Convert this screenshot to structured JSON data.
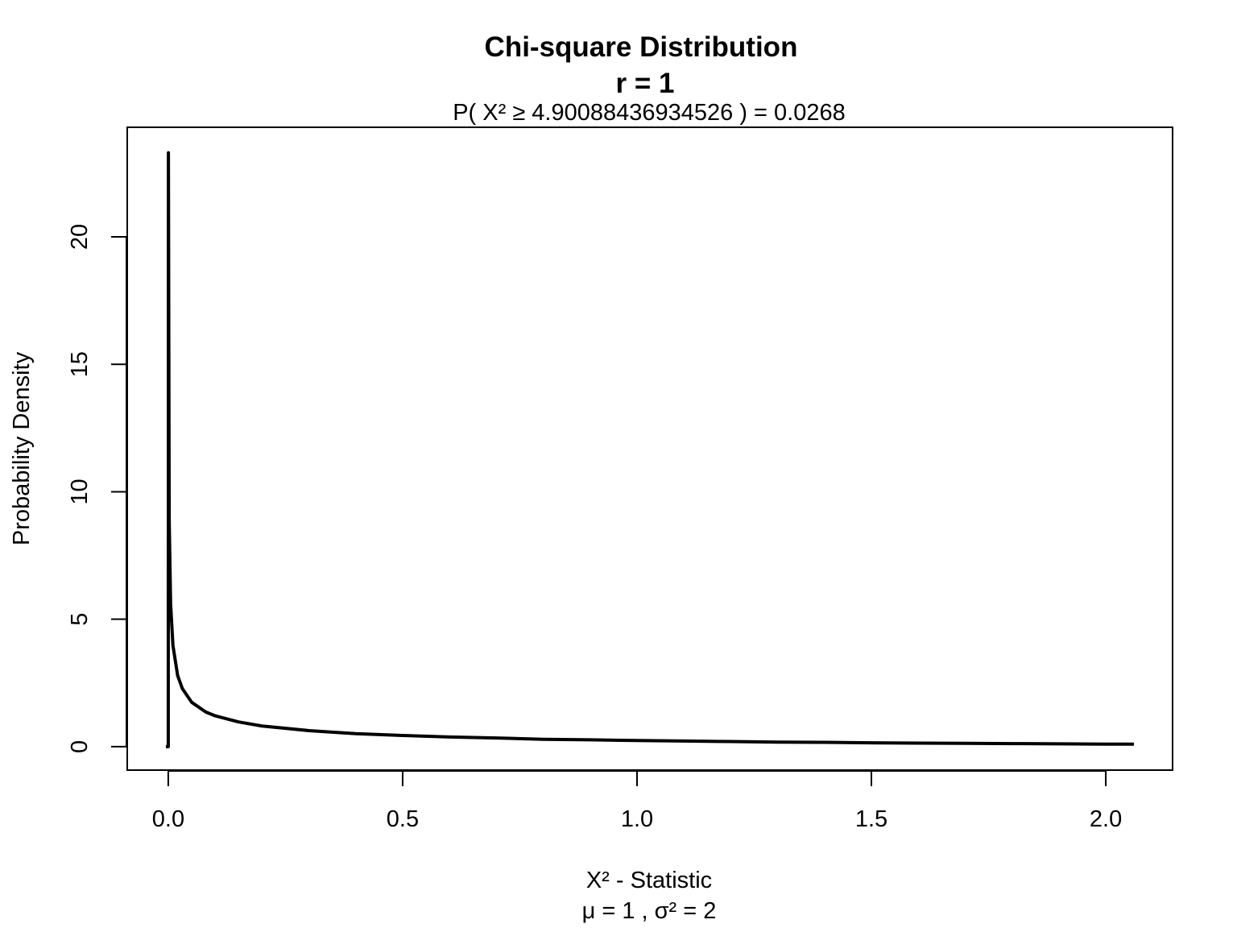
{
  "chart_data": {
    "type": "line",
    "title": "Chi-square Distribution",
    "subtitle": "r  =  1",
    "probability_label": "P(  X²  ≥  4.90088436934526  ) = 0.0268",
    "xlabel": "X² - Statistic",
    "xlabel_sub": "μ =  1 , σ² =  2",
    "ylabel": "Probability Density",
    "xlim": [
      -0.0875,
      2.1425
    ],
    "ylim": [
      -0.92,
      24.3
    ],
    "x_ticks": [
      0,
      0.5,
      1,
      1.5,
      2
    ],
    "x_tick_labels": [
      "0.0",
      "0.5",
      "1.0",
      "1.5",
      "2.0"
    ],
    "y_ticks": [
      0,
      5,
      10,
      15,
      20
    ],
    "y_tick_labels": [
      "0",
      "5",
      "10",
      "15",
      "20"
    ],
    "grid": false,
    "line_color": "#000000",
    "series": [
      {
        "x": [
          -0.005,
          -0.004,
          0.0,
          0.0003,
          0.002,
          0.005,
          0.01,
          0.02,
          0.03,
          0.05,
          0.08,
          0.1,
          0.15,
          0.2,
          0.3,
          0.4,
          0.5,
          0.6,
          0.7,
          0.8,
          0.9,
          1.0,
          1.1,
          1.2,
          1.3,
          1.4,
          1.5,
          1.6,
          1.7,
          1.8,
          1.9,
          2.0,
          2.06
        ],
        "y": [
          0,
          0,
          0,
          23.3,
          8.9,
          5.6,
          3.97,
          2.79,
          2.28,
          1.74,
          1.36,
          1.21,
          0.97,
          0.81,
          0.63,
          0.51,
          0.44,
          0.38,
          0.34,
          0.29,
          0.27,
          0.24,
          0.22,
          0.2,
          0.18,
          0.17,
          0.15,
          0.14,
          0.13,
          0.12,
          0.11,
          0.1,
          0.1
        ]
      }
    ]
  }
}
